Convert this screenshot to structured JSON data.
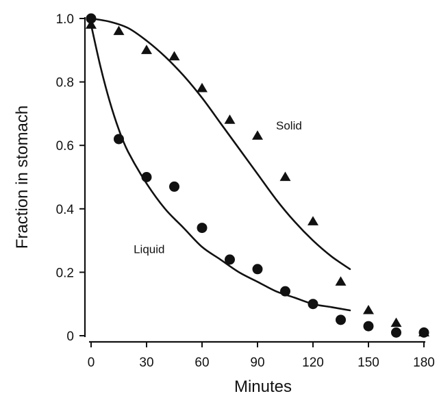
{
  "chart_data": {
    "type": "scatter",
    "title": "",
    "xlabel": "Minutes",
    "ylabel": "Fraction in stomach",
    "xlim": [
      0,
      180
    ],
    "ylim": [
      0,
      1.0
    ],
    "x_ticks": [
      0,
      30,
      60,
      90,
      120,
      150,
      180
    ],
    "x_tick_labels": [
      "0",
      "30",
      "60",
      "90",
      "120",
      "150",
      "180"
    ],
    "y_ticks": [
      0,
      0.2,
      0.4,
      0.6,
      0.8,
      1.0
    ],
    "y_tick_labels": [
      "0",
      "0.2",
      "0.4",
      "0.6",
      "0.8",
      "1.0"
    ],
    "grid": false,
    "series": [
      {
        "name": "Solid",
        "marker": "triangle",
        "x": [
          0,
          15,
          30,
          45,
          60,
          75,
          90,
          105,
          120,
          135,
          150,
          165,
          180
        ],
        "y": [
          0.98,
          0.96,
          0.9,
          0.88,
          0.78,
          0.68,
          0.63,
          0.5,
          0.36,
          0.17,
          0.08,
          0.04,
          0.01
        ],
        "fit": {
          "x": [
            0,
            10,
            20,
            30,
            40,
            50,
            60,
            70,
            80,
            90,
            100,
            110,
            120,
            130,
            140
          ],
          "y": [
            1.0,
            0.99,
            0.97,
            0.93,
            0.88,
            0.82,
            0.75,
            0.67,
            0.59,
            0.51,
            0.43,
            0.36,
            0.3,
            0.25,
            0.21
          ]
        }
      },
      {
        "name": "Liquid",
        "marker": "circle",
        "x": [
          0,
          15,
          30,
          45,
          60,
          75,
          90,
          105,
          120,
          135,
          150,
          165,
          180
        ],
        "y": [
          1.0,
          0.62,
          0.5,
          0.47,
          0.34,
          0.24,
          0.21,
          0.14,
          0.1,
          0.05,
          0.03,
          0.01,
          0.01
        ],
        "fit": {
          "x": [
            0,
            5,
            10,
            15,
            20,
            30,
            40,
            50,
            60,
            70,
            80,
            90,
            100,
            110,
            120,
            130,
            140
          ],
          "y": [
            0.98,
            0.85,
            0.74,
            0.65,
            0.58,
            0.48,
            0.4,
            0.34,
            0.28,
            0.24,
            0.2,
            0.17,
            0.14,
            0.12,
            0.1,
            0.09,
            0.08
          ]
        }
      }
    ],
    "annotations": [
      {
        "text": "Solid",
        "x": 100,
        "y": 0.65
      },
      {
        "text": "Liquid",
        "x": 23,
        "y": 0.26
      }
    ]
  }
}
